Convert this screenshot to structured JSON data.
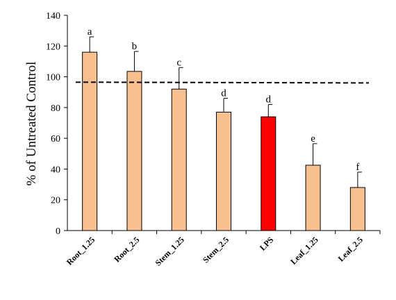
{
  "chart_data": {
    "type": "bar",
    "title": "",
    "xlabel": "",
    "ylabel": "% of  Untreated Control",
    "ylim": [
      0,
      140
    ],
    "yticks": [
      0,
      20,
      40,
      60,
      80,
      100,
      120,
      140
    ],
    "categories": [
      "Root_1.25",
      "Root_2.5",
      "Stem_1.25",
      "Stem_2.5",
      "LPS",
      "Leaf_1.25",
      "Leaf_2.5"
    ],
    "values": [
      116,
      103.5,
      92,
      77,
      74,
      42.5,
      28
    ],
    "errors": [
      10,
      13,
      14,
      9,
      8,
      14,
      10
    ],
    "significance_letters": [
      "a",
      "b",
      "c",
      "d",
      "d",
      "e",
      "f"
    ],
    "bar_colors": [
      "#f9c08f",
      "#f9c08f",
      "#f9c08f",
      "#f9c08f",
      "#ff0000",
      "#f9c08f",
      "#f9c08f"
    ],
    "reference_line": {
      "style": "dashed",
      "y_start": 96.5,
      "y_end": 96
    },
    "grid": false,
    "legend": "none"
  }
}
